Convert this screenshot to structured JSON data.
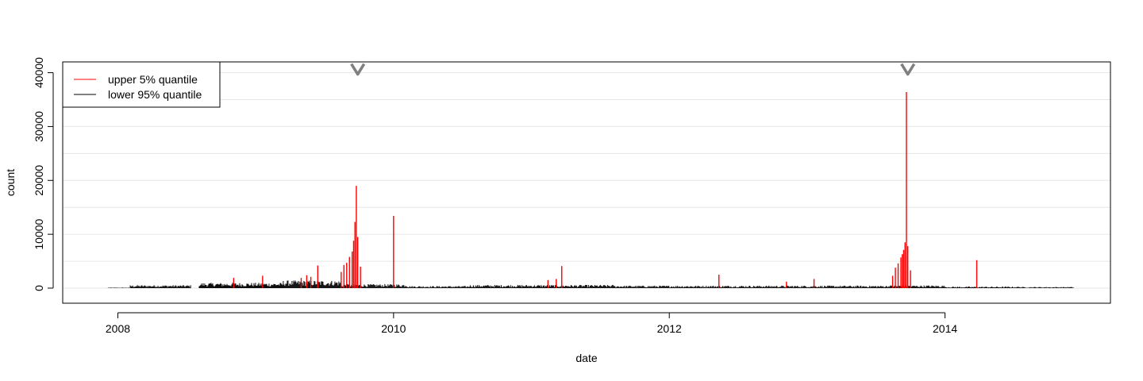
{
  "chart_data": {
    "type": "bar",
    "xlabel": "date",
    "ylabel": "count",
    "xlim": [
      2007.6,
      2015.2
    ],
    "ylim": [
      -2800,
      42000
    ],
    "x_ticks": [
      2008,
      2010,
      2012,
      2014
    ],
    "x_tick_labels": [
      "2008",
      "2010",
      "2012",
      "2014"
    ],
    "y_ticks": [
      0,
      10000,
      20000,
      30000,
      40000
    ],
    "y_tick_labels": [
      "0",
      "10000",
      "20000",
      "30000",
      "40000"
    ],
    "grid": true,
    "legend_position": "top-left",
    "colors": {
      "upper": "#ff0000",
      "lower": "#000000",
      "marker": "#808080",
      "grid": "#e6e6e6"
    },
    "series": [
      {
        "name": "upper 5% quantile",
        "color": "#ff0000",
        "points": [
          [
            2008.84,
            1900
          ],
          [
            2009.05,
            2300
          ],
          [
            2009.33,
            1900
          ],
          [
            2009.37,
            2400
          ],
          [
            2009.4,
            2100
          ],
          [
            2009.45,
            4200
          ],
          [
            2009.62,
            3000
          ],
          [
            2009.64,
            4300
          ],
          [
            2009.66,
            4700
          ],
          [
            2009.68,
            5800
          ],
          [
            2009.7,
            6800
          ],
          [
            2009.71,
            8800
          ],
          [
            2009.72,
            12300
          ],
          [
            2009.73,
            19000
          ],
          [
            2009.74,
            9500
          ],
          [
            2009.76,
            4000
          ],
          [
            2010.0,
            13400
          ],
          [
            2011.12,
            1500
          ],
          [
            2011.18,
            1700
          ],
          [
            2011.22,
            4100
          ],
          [
            2012.36,
            2500
          ],
          [
            2012.85,
            1200
          ],
          [
            2013.05,
            1700
          ],
          [
            2013.62,
            2300
          ],
          [
            2013.64,
            3800
          ],
          [
            2013.66,
            4600
          ],
          [
            2013.68,
            5700
          ],
          [
            2013.69,
            6300
          ],
          [
            2013.7,
            7100
          ],
          [
            2013.71,
            8500
          ],
          [
            2013.72,
            36400
          ],
          [
            2013.73,
            7800
          ],
          [
            2013.75,
            3300
          ],
          [
            2014.23,
            5200
          ]
        ]
      },
      {
        "name": "lower 95% quantile",
        "color": "#000000",
        "segments": [
          {
            "from": 2007.93,
            "to": 2008.08,
            "base": 80
          },
          {
            "from": 2008.09,
            "to": 2008.53,
            "base": 450
          },
          {
            "from": 2008.59,
            "to": 2009.2,
            "base": 800
          },
          {
            "from": 2009.2,
            "to": 2009.62,
            "base": 1150
          },
          {
            "from": 2009.62,
            "to": 2010.1,
            "base": 600
          },
          {
            "from": 2010.1,
            "to": 2010.55,
            "base": 320
          },
          {
            "from": 2010.55,
            "to": 2011.6,
            "base": 480
          },
          {
            "from": 2011.6,
            "to": 2013.6,
            "base": 380
          },
          {
            "from": 2013.6,
            "to": 2014.0,
            "base": 420
          },
          {
            "from": 2014.0,
            "to": 2014.55,
            "base": 220
          },
          {
            "from": 2014.55,
            "to": 2014.93,
            "base": 180
          }
        ]
      }
    ],
    "event_markers": [
      2009.74,
      2013.73
    ]
  }
}
